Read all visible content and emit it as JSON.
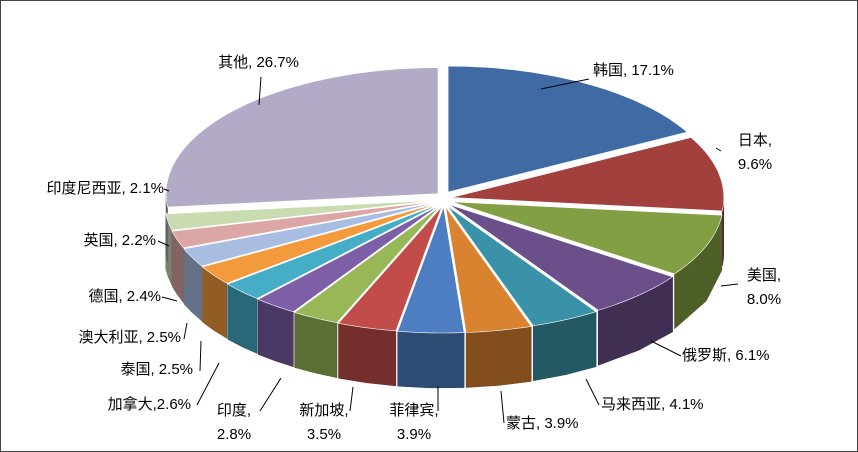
{
  "chart_data": {
    "type": "pie3d",
    "values": [
      17.1,
      9.6,
      8.0,
      6.1,
      4.1,
      3.9,
      3.9,
      3.5,
      2.8,
      2.6,
      2.5,
      2.5,
      2.4,
      2.2,
      2.1,
      26.7
    ],
    "value_labels": [
      "韩国, 17.1%",
      "日本, 9.6%",
      "美国, 8.0%",
      "俄罗斯, 6.1%",
      "马来西亚, 4.1%",
      "蒙古, 3.9%",
      "菲律宾, 3.9%",
      "新加坡, 3.5%",
      "印度, 2.8%",
      "加拿大,2.6%",
      "泰国, 2.5%",
      "澳大利亚, 2.5%",
      "德国, 2.4%",
      "英国, 2.2%",
      "印度尼西亚, 2.1%",
      "其他, 26.7%"
    ],
    "colors": [
      "#3f6aa3",
      "#a1403d",
      "#82a043",
      "#6a4f8b",
      "#3a92a8",
      "#d9822f",
      "#4d7ec1",
      "#c14c49",
      "#98b858",
      "#7c5fa6",
      "#45adc6",
      "#f39a3d",
      "#a8bde1",
      "#dca6a5",
      "#cadbb0",
      "#b3aac7"
    ]
  }
}
